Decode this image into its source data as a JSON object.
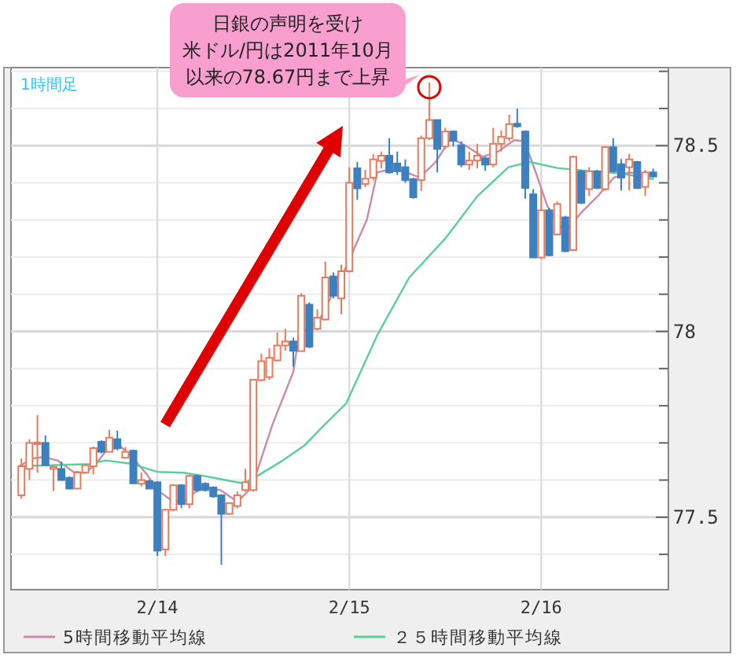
{
  "chart_data": {
    "type": "candlestick",
    "annotations": [
      "1時間足",
      "日銀の声明を受け",
      "米ドル/円は2011年10月",
      "以来の78.67円まで上昇"
    ],
    "x": [
      "--02-13T07:00",
      "--02-13T08:00",
      "--02-13T09:00",
      "--02-13T10:00",
      "--02-13T11:00",
      "--02-13T12:00",
      "--02-13T13:00",
      "--02-13T14:00",
      "--02-13T15:00",
      "--02-13T16:00",
      "--02-13T17:00",
      "--02-13T18:00",
      "--02-13T19:00",
      "--02-13T20:00",
      "--02-13T21:00",
      "--02-13T22:00",
      "--02-13T23:00",
      "--02-14T00:00",
      "--02-14T01:00",
      "--02-14T02:00",
      "--02-14T03:00",
      "--02-14T04:00",
      "--02-14T05:00",
      "--02-14T06:00",
      "--02-14T07:00",
      "--02-14T08:00",
      "--02-14T09:00",
      "--02-14T10:00",
      "--02-14T11:00",
      "--02-14T12:00",
      "--02-14T13:00",
      "--02-14T14:00",
      "--02-14T15:00",
      "--02-14T16:00",
      "--02-14T17:00",
      "--02-14T18:00",
      "--02-14T19:00",
      "--02-14T20:00",
      "--02-14T21:00",
      "--02-14T22:00",
      "--02-14T23:00",
      "--02-15T00:00",
      "--02-15T01:00",
      "--02-15T02:00",
      "--02-15T03:00",
      "--02-15T04:00",
      "--02-15T05:00",
      "--02-15T06:00",
      "--02-15T07:00",
      "--02-15T08:00",
      "--02-15T09:00",
      "--02-15T10:00",
      "--02-15T11:00",
      "--02-15T12:00",
      "--02-15T13:00",
      "--02-15T14:00",
      "--02-15T15:00",
      "--02-15T16:00",
      "--02-15T17:00",
      "--02-15T18:00",
      "--02-15T19:00",
      "--02-15T20:00",
      "--02-15T21:00",
      "--02-15T22:00",
      "--02-15T23:00",
      "--02-16T00:00",
      "--02-16T01:00",
      "--02-16T02:00",
      "--02-16T03:00",
      "--02-16T04:00",
      "--02-16T05:00",
      "--02-16T06:00",
      "--02-16T07:00",
      "--02-16T08:00",
      "--02-16T09:00",
      "--02-16T10:00",
      "--02-16T11:00",
      "--02-16T12:00",
      "--02-16T13:00",
      "--02-16T14:00"
    ],
    "ohlc": [
      [
        77.559,
        77.658,
        77.55,
        77.637
      ],
      [
        77.63,
        77.71,
        77.6,
        77.7
      ],
      [
        77.697,
        77.775,
        77.62,
        77.701
      ],
      [
        77.7,
        77.72,
        77.64,
        77.64
      ],
      [
        77.63,
        77.64,
        77.57,
        77.635
      ],
      [
        77.63,
        77.65,
        77.6,
        77.6
      ],
      [
        77.606,
        77.61,
        77.577,
        77.577
      ],
      [
        77.577,
        77.625,
        77.577,
        77.62
      ],
      [
        77.62,
        77.642,
        77.617,
        77.64
      ],
      [
        77.637,
        77.69,
        77.615,
        77.686
      ],
      [
        77.703,
        77.707,
        77.672,
        77.676
      ],
      [
        77.676,
        77.735,
        77.676,
        77.714
      ],
      [
        77.71,
        77.733,
        77.68,
        77.686
      ],
      [
        77.66,
        77.689,
        77.658,
        77.676
      ],
      [
        77.679,
        77.682,
        77.591,
        77.591
      ],
      [
        77.59,
        77.62,
        77.583,
        77.6
      ],
      [
        77.597,
        77.601,
        77.577,
        77.577
      ],
      [
        77.594,
        77.597,
        77.396,
        77.41
      ],
      [
        77.413,
        77.523,
        77.396,
        77.52
      ],
      [
        77.52,
        77.589,
        77.516,
        77.586
      ],
      [
        77.586,
        77.589,
        77.524,
        77.535
      ],
      [
        77.535,
        77.614,
        77.524,
        77.611
      ],
      [
        77.611,
        77.615,
        77.569,
        77.573
      ],
      [
        77.59,
        77.594,
        77.569,
        77.573
      ],
      [
        77.58,
        77.583,
        77.552,
        77.556
      ],
      [
        77.559,
        77.562,
        77.372,
        77.509
      ],
      [
        77.509,
        77.54,
        77.507,
        77.538
      ],
      [
        77.53,
        77.569,
        77.524,
        77.559
      ],
      [
        77.573,
        77.63,
        77.569,
        77.594
      ],
      [
        77.573,
        77.872,
        77.569,
        77.87
      ],
      [
        77.869,
        77.94,
        77.866,
        77.92
      ],
      [
        77.877,
        77.955,
        77.87,
        77.929
      ],
      [
        77.922,
        77.997,
        77.919,
        77.962
      ],
      [
        77.962,
        78.007,
        77.948,
        77.973
      ],
      [
        77.973,
        77.983,
        77.905,
        77.948
      ],
      [
        77.947,
        78.103,
        77.947,
        78.096
      ],
      [
        78.072,
        78.078,
        77.955,
        77.959
      ],
      [
        78.007,
        78.06,
        78.003,
        78.037
      ],
      [
        78.032,
        78.188,
        78.03,
        78.145
      ],
      [
        78.148,
        78.159,
        78.089,
        78.096
      ],
      [
        78.089,
        78.18,
        78.046,
        78.162
      ],
      [
        78.162,
        78.442,
        78.159,
        78.4
      ],
      [
        78.439,
        78.456,
        78.354,
        78.385
      ],
      [
        78.397,
        78.435,
        78.388,
        78.411
      ],
      [
        78.414,
        78.477,
        78.407,
        78.463
      ],
      [
        78.459,
        78.484,
        78.439,
        78.473
      ],
      [
        78.473,
        78.52,
        78.425,
        78.428
      ],
      [
        78.452,
        78.484,
        78.421,
        78.431
      ],
      [
        78.442,
        78.463,
        78.4,
        78.407
      ],
      [
        78.41,
        78.414,
        78.357,
        78.361
      ],
      [
        78.407,
        78.527,
        78.378,
        78.52
      ],
      [
        78.52,
        78.67,
        78.515,
        78.569
      ],
      [
        78.569,
        78.569,
        78.428,
        78.491
      ],
      [
        78.498,
        78.548,
        78.491,
        78.538
      ],
      [
        78.538,
        78.541,
        78.498,
        78.513
      ],
      [
        78.501,
        78.512,
        78.442,
        78.449
      ],
      [
        78.449,
        78.484,
        78.435,
        78.46
      ],
      [
        78.46,
        78.505,
        78.439,
        78.473
      ],
      [
        78.466,
        78.47,
        78.432,
        78.449
      ],
      [
        78.449,
        78.548,
        78.442,
        78.505
      ],
      [
        78.505,
        78.541,
        78.484,
        78.524
      ],
      [
        78.52,
        78.583,
        78.512,
        78.558
      ],
      [
        78.559,
        78.6,
        78.548,
        78.552
      ],
      [
        78.538,
        78.541,
        78.357,
        78.386
      ],
      [
        78.369,
        78.383,
        78.199,
        78.199
      ],
      [
        78.199,
        78.383,
        78.195,
        78.326
      ],
      [
        78.326,
        78.332,
        78.202,
        78.205
      ],
      [
        78.261,
        78.35,
        78.259,
        78.343
      ],
      [
        78.307,
        78.311,
        78.213,
        78.216
      ],
      [
        78.219,
        78.473,
        78.216,
        78.47
      ],
      [
        78.431,
        78.435,
        78.343,
        78.346
      ],
      [
        78.383,
        78.442,
        78.365,
        78.431
      ],
      [
        78.431,
        78.435,
        78.383,
        78.386
      ],
      [
        78.383,
        78.499,
        78.379,
        78.496
      ],
      [
        78.496,
        78.52,
        78.428,
        78.431
      ],
      [
        78.45,
        78.464,
        78.379,
        78.414
      ],
      [
        78.442,
        78.478,
        78.379,
        78.463
      ],
      [
        78.456,
        78.459,
        78.383,
        78.386
      ],
      [
        78.389,
        78.435,
        78.365,
        78.428
      ],
      [
        78.428,
        78.438,
        78.414,
        78.417
      ]
    ],
    "colors": [
      "#e57a5c",
      "#e57a5c",
      "#e57a5c",
      "#3d80c0",
      "#e57a5c",
      "#3d80c0",
      "#3d80c0",
      "#e57a5c",
      "#e57a5c",
      "#e57a5c",
      "#3d80c0",
      "#e57a5c",
      "#3d80c0",
      "#e57a5c",
      "#3d80c0",
      "#e57a5c",
      "#3d80c0",
      "#3d80c0",
      "#e57a5c",
      "#e57a5c",
      "#3d80c0",
      "#e57a5c",
      "#3d80c0",
      "#3d80c0",
      "#3d80c0",
      "#3d80c0",
      "#e57a5c",
      "#e57a5c",
      "#e57a5c",
      "#e57a5c",
      "#e57a5c",
      "#e57a5c",
      "#e57a5c",
      "#e57a5c",
      "#3d80c0",
      "#e57a5c",
      "#3d80c0",
      "#e57a5c",
      "#e57a5c",
      "#3d80c0",
      "#e57a5c",
      "#e57a5c",
      "#3d80c0",
      "#e57a5c",
      "#e57a5c",
      "#e57a5c",
      "#3d80c0",
      "#3d80c0",
      "#3d80c0",
      "#3d80c0",
      "#e57a5c",
      "#e57a5c",
      "#3d80c0",
      "#e57a5c",
      "#3d80c0",
      "#3d80c0",
      "#e57a5c",
      "#e57a5c",
      "#3d80c0",
      "#e57a5c",
      "#e57a5c",
      "#e57a5c",
      "#3d80c0",
      "#3d80c0",
      "#3d80c0",
      "#e57a5c",
      "#3d80c0",
      "#e57a5c",
      "#3d80c0",
      "#e57a5c",
      "#3d80c0",
      "#e57a5c",
      "#3d80c0",
      "#e57a5c",
      "#3d80c0",
      "#3d80c0",
      "#e57a5c",
      "#3d80c0",
      "#e57a5c",
      "#3d80c0"
    ],
    "series": [
      {
        "name": "5時間移動平均線",
        "type": "line",
        "color": "#c98aab",
        "x": [
          "--02-13T06:42",
          "--02-13T08:24",
          "--02-13T09:42",
          "--02-13T11:30",
          "--02-13T13:30",
          "--02-13T14:48",
          "--02-13T16:06",
          "--02-13T17:30",
          "--02-13T19:24",
          "--02-13T20:42",
          "--02-13T22:42",
          "--02-14T00:00",
          "--02-14T01:36",
          "--02-14T03:18",
          "--02-14T04:36",
          "--02-14T05:54",
          "--02-14T07:54",
          "--02-14T09:30",
          "--02-14T10:30",
          "--02-14T11:48",
          "--02-14T14:24",
          "--02-14T17:00",
          "--02-14T17:42",
          "--02-14T20:18",
          "--02-14T23:36",
          "--02-15T02:12",
          "--02-15T03:30",
          "--02-15T04:54",
          "--02-15T06:48",
          "--02-15T08:48",
          "--02-15T10:48",
          "--02-15T12:42",
          "--02-15T14:42",
          "--02-15T16:42",
          "--02-15T18:36",
          "--02-15T20:36",
          "--02-15T21:54",
          "--02-15T23:12",
          "--02-16T00:48",
          "--02-16T02:54",
          "--02-16T05:06",
          "--02-16T07:06",
          "--02-16T09:06",
          "--02-16T11:00",
          "--02-16T13:00",
          "--02-16T14:18"
        ],
        "values": [
          77.637,
          77.658,
          77.662,
          77.653,
          77.622,
          77.62,
          77.637,
          77.676,
          77.69,
          77.665,
          77.615,
          77.573,
          77.548,
          77.54,
          77.566,
          77.58,
          77.573,
          77.549,
          77.552,
          77.58,
          77.75,
          77.891,
          77.99,
          78.032,
          78.174,
          78.301,
          78.428,
          78.435,
          78.431,
          78.414,
          78.456,
          78.52,
          78.498,
          78.47,
          78.484,
          78.515,
          78.512,
          78.435,
          78.336,
          78.266,
          78.322,
          78.365,
          78.414,
          78.428,
          78.421,
          78.425
        ]
      },
      {
        "name": "２５時間移動平均線",
        "type": "line",
        "color": "#5ccf98",
        "x": [
          "--02-13T06:42",
          "--02-13T15:30",
          "--02-13T17:30",
          "--02-13T20:42",
          "--02-14T00:00",
          "--02-14T03:18",
          "--02-14T06:36",
          "--02-14T09:12",
          "--02-14T10:48",
          "--02-14T12:30",
          "--02-14T15:42",
          "--02-14T18:24",
          "--02-14T20:30",
          "--02-14T23:36",
          "--02-15T03:30",
          "--02-15T07:30",
          "--02-15T12:00",
          "--02-15T16:00",
          "--02-15T19:54",
          "--02-15T22:36",
          "--02-16T02:00",
          "--02-16T06:00",
          "--02-16T10:00",
          "--02-16T14:00"
        ],
        "values": [
          77.637,
          77.643,
          77.653,
          77.644,
          77.622,
          77.62,
          77.608,
          77.597,
          77.591,
          77.611,
          77.653,
          77.693,
          77.74,
          77.806,
          77.99,
          78.145,
          78.25,
          78.364,
          78.442,
          78.456,
          78.44,
          78.431,
          78.425,
          78.41
        ]
      }
    ],
    "xlim": [
      "--02-13T05:42",
      "--02-16T15:54"
    ],
    "xticks": [
      {
        "value": "--02-14",
        "label": "2/14"
      },
      {
        "value": "--02-15",
        "label": "2/15"
      },
      {
        "value": "--02-16",
        "label": "2/16"
      }
    ],
    "ylim": [
      77.305,
      78.71
    ],
    "yticks": [
      {
        "value": 77.4,
        "label": null
      },
      {
        "value": 77.5,
        "label": "77.5"
      },
      {
        "value": 77.6,
        "label": null
      },
      {
        "value": 77.7,
        "label": null
      },
      {
        "value": 77.8,
        "label": null
      },
      {
        "value": 77.9,
        "label": null
      },
      {
        "value": 78,
        "label": "78"
      },
      {
        "value": 78.1,
        "label": null
      },
      {
        "value": 78.2,
        "label": null
      },
      {
        "value": 78.3,
        "label": null
      },
      {
        "value": 78.4,
        "label": null
      },
      {
        "value": 78.5,
        "label": "78.5"
      },
      {
        "value": 78.6,
        "label": null
      },
      {
        "value": 78.7,
        "label": null
      }
    ],
    "grid": true,
    "legend": "bottom"
  }
}
